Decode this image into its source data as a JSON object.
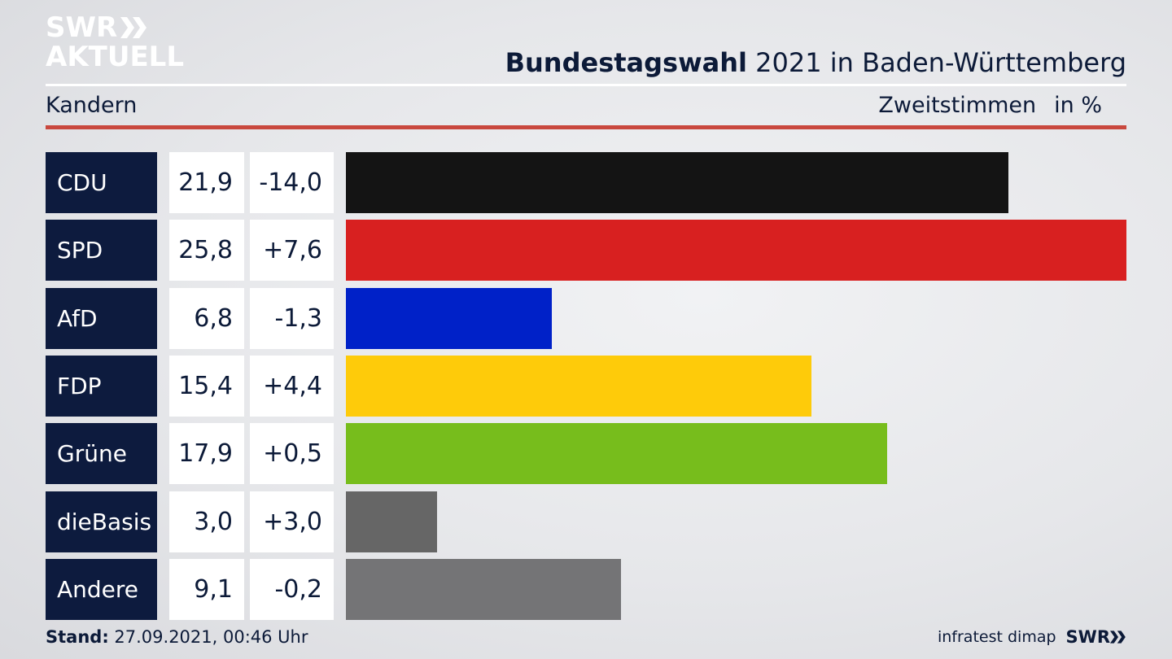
{
  "logo": {
    "line1": "SWR",
    "line2": "AKTUELL"
  },
  "header": {
    "title_bold": "Bundestagswahl",
    "title_rest": " 2021 in Baden-Württemberg",
    "region": "Kandern",
    "measure": "Zweitstimmen",
    "unit": "in %"
  },
  "chart_data": {
    "type": "bar",
    "title": "Bundestagswahl 2021 in Baden-Württemberg",
    "subtitle": "Kandern",
    "ylabel": "Zweitstimmen in %",
    "ylim": [
      0,
      25.8
    ],
    "categories": [
      "CDU",
      "SPD",
      "AfD",
      "FDP",
      "Grüne",
      "dieBasis",
      "Andere"
    ],
    "values": [
      21.9,
      25.8,
      6.8,
      15.4,
      17.9,
      3.0,
      9.1
    ],
    "value_labels": [
      "21,9",
      "25,8",
      "6,8",
      "15,4",
      "17,9",
      "3,0",
      "9,1"
    ],
    "change_labels": [
      "-14,0",
      "+7,6",
      "-1,3",
      "+4,4",
      "+0,5",
      "+3,0",
      "-0,2"
    ],
    "colors": [
      "#141414",
      "#d82020",
      "#0021c8",
      "#fecb0a",
      "#77bd1c",
      "#666666",
      "#747476"
    ]
  },
  "footer": {
    "stand_label": "Stand:",
    "stand_value": " 27.09.2021, 00:46 Uhr",
    "source": "infratest dimap",
    "brand": "SWR"
  }
}
